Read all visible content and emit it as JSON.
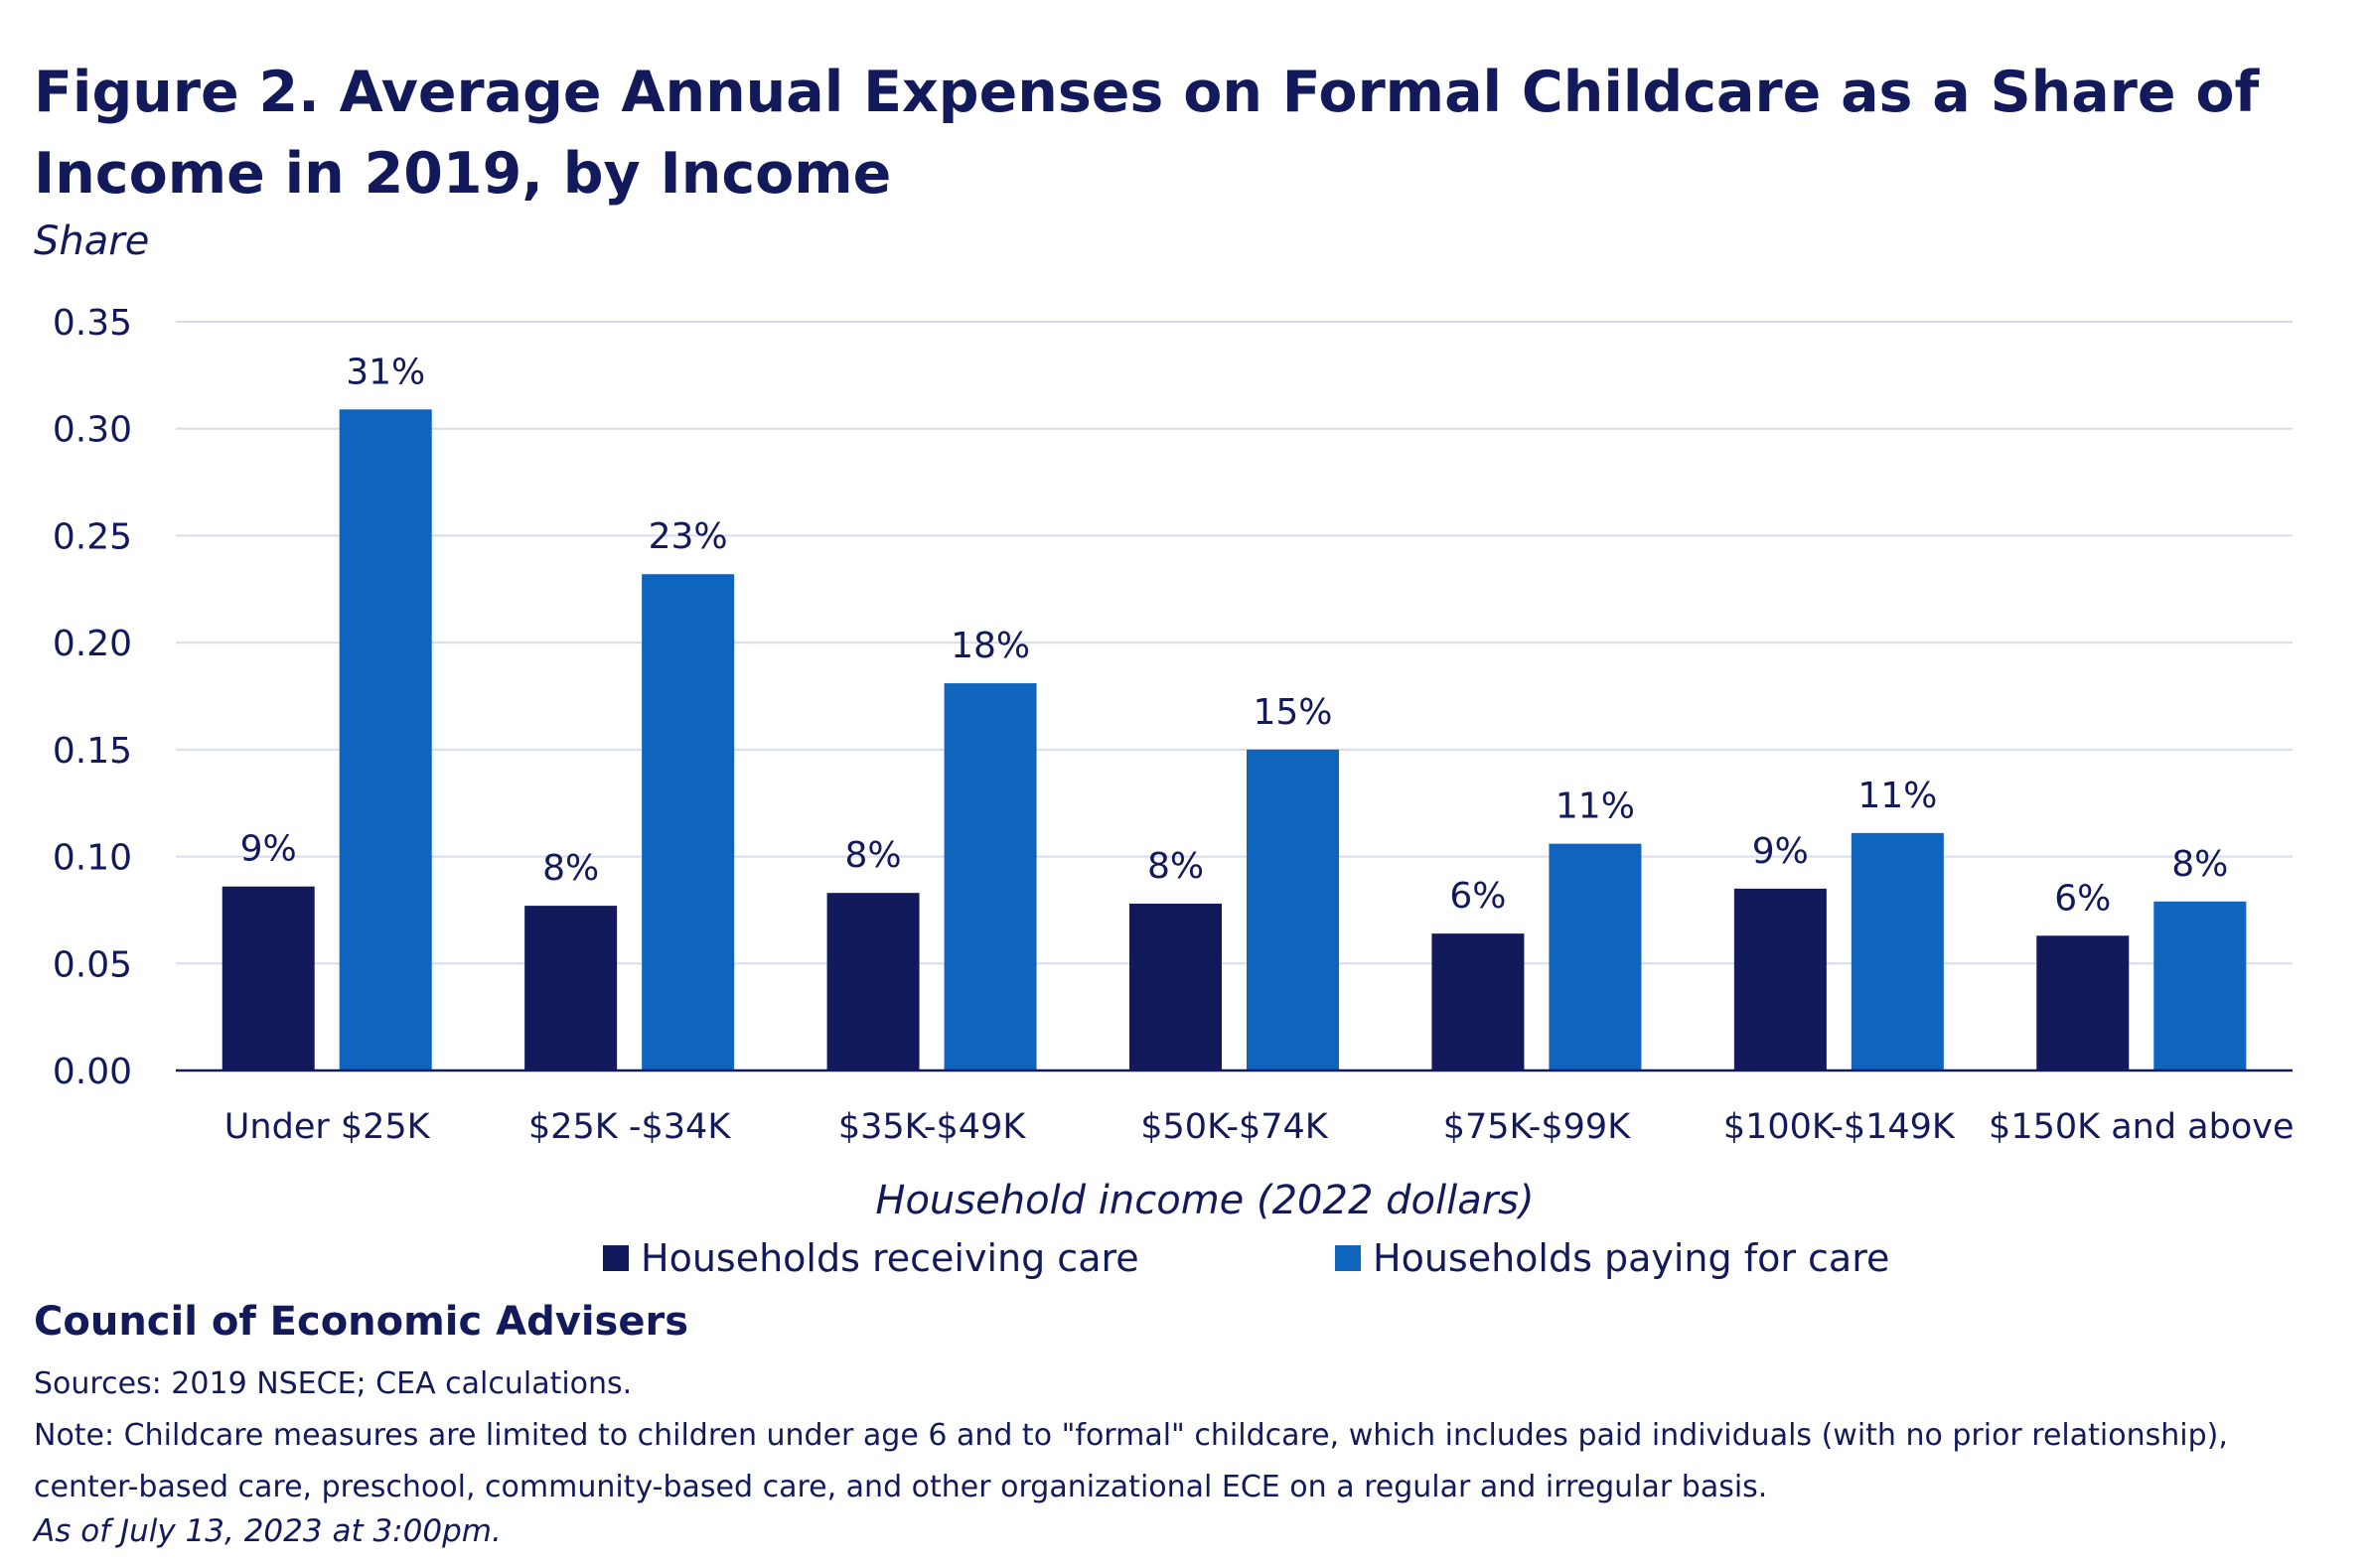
{
  "header": {
    "title": "Figure 2. Average Annual Expenses on Formal Childcare as a Share of Income in 2019, by Income"
  },
  "chart_data": {
    "type": "bar",
    "ylabel": "Share",
    "xlabel": "Household income (2022 dollars)",
    "ylim": [
      0,
      0.35
    ],
    "yticks": [
      "0.00",
      "0.05",
      "0.10",
      "0.15",
      "0.20",
      "0.25",
      "0.30",
      "0.35"
    ],
    "grid": true,
    "legend_position": "bottom",
    "categories": [
      "Under $25K",
      "$25K -$34K",
      "$35K-$49K",
      "$50K-$74K",
      "$75K-$99K",
      "$100K-$149K",
      "$150K and above"
    ],
    "series": [
      {
        "name": "Households receiving care",
        "color": "#131a5c",
        "values": [
          0.086,
          0.077,
          0.083,
          0.078,
          0.064,
          0.085,
          0.063
        ],
        "labels": [
          "9%",
          "8%",
          "8%",
          "8%",
          "6%",
          "9%",
          "6%"
        ]
      },
      {
        "name": "Households paying for care",
        "color": "#0f64be",
        "values": [
          0.309,
          0.232,
          0.181,
          0.15,
          0.106,
          0.111,
          0.079
        ],
        "labels": [
          "31%",
          "23%",
          "18%",
          "15%",
          "11%",
          "11%",
          "8%"
        ]
      }
    ]
  },
  "footer": {
    "organization": "Council of Economic Advisers",
    "sources": "Sources: 2019 NSECE; CEA calculations.",
    "note": "Note: Childcare measures are limited to children under age 6 and to \"formal\" childcare, which includes paid individuals (with no prior relationship), center-based care, preschool, community-based care, and other organizational ECE on a regular and irregular basis.",
    "as_of": "As of July 13, 2023 at 3:00pm."
  }
}
